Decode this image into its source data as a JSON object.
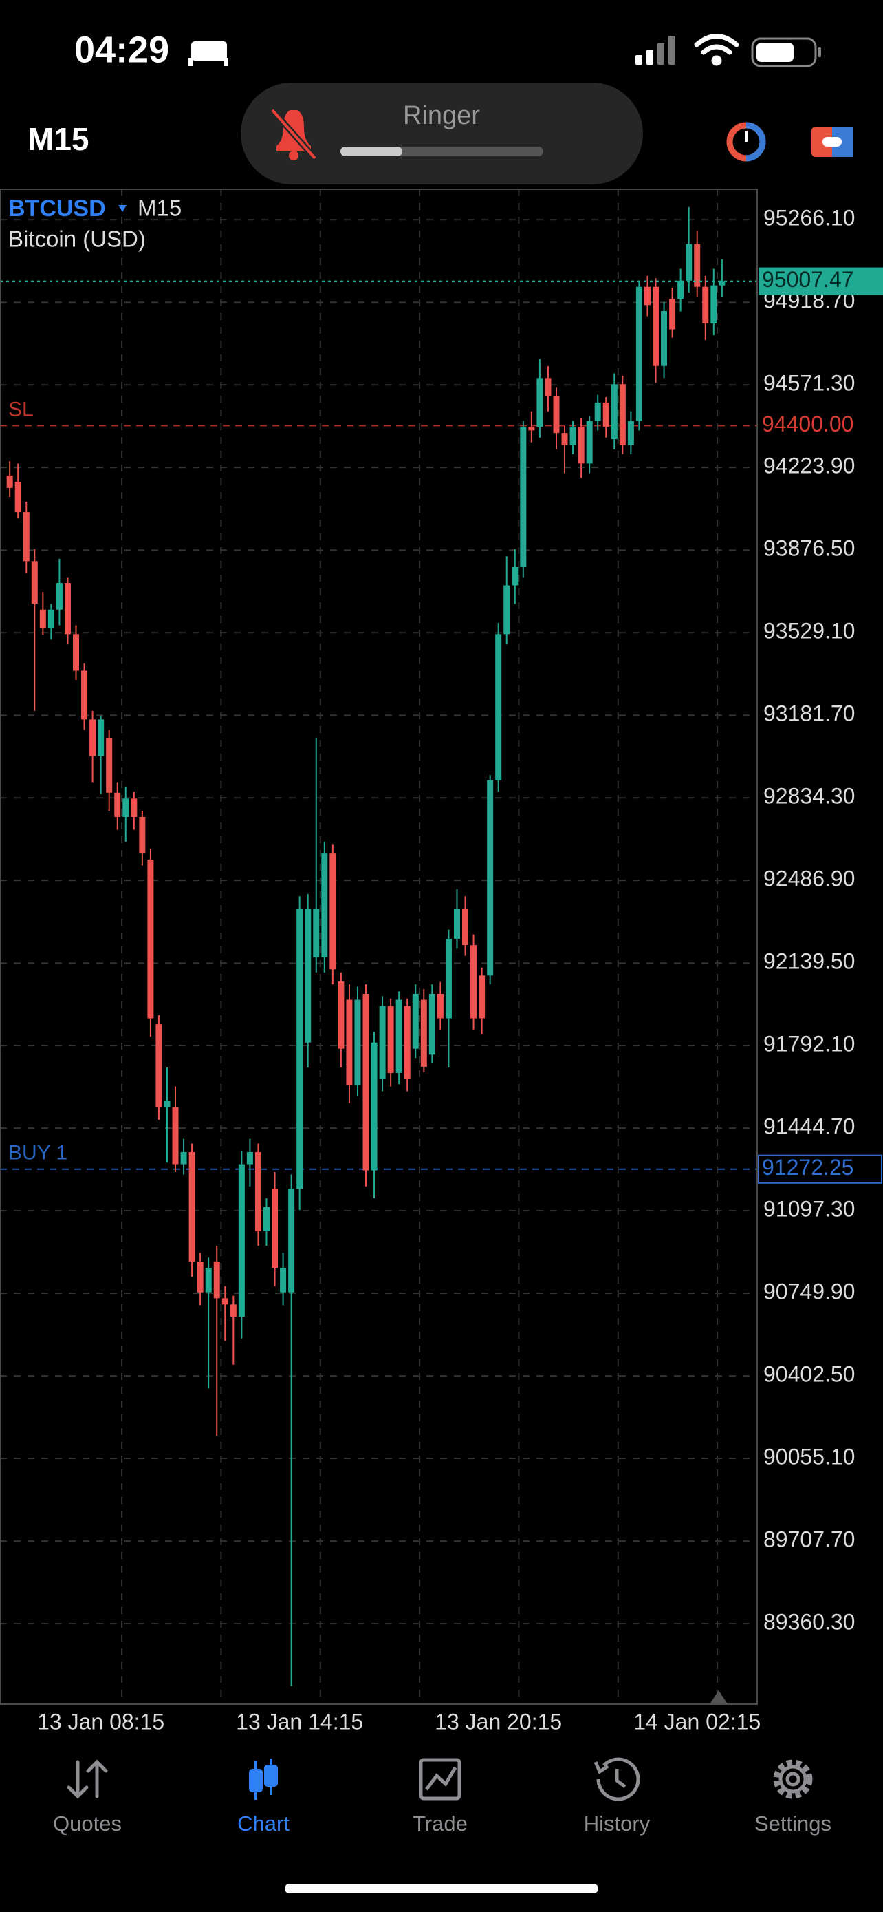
{
  "status_bar": {
    "time": "04:29"
  },
  "ringer": {
    "label": "Ringer"
  },
  "toolbar": {
    "timeframe": "M15"
  },
  "chart_data": {
    "type": "candlestick",
    "symbol": "BTCUSD",
    "timeframe": "M15",
    "description": "Bitcoin (USD)",
    "categories": [
      null,
      null,
      null,
      null,
      null,
      null,
      null,
      null,
      null,
      null,
      null,
      "13 Jan 08:15",
      null,
      null,
      null,
      null,
      null,
      null,
      null,
      null,
      null,
      null,
      null,
      null,
      null,
      null,
      null,
      null,
      null,
      null,
      null,
      null,
      null,
      null,
      null,
      "13 Jan 14:15",
      null,
      null,
      null,
      null,
      null,
      null,
      null,
      null,
      null,
      null,
      null,
      null,
      null,
      null,
      null,
      null,
      null,
      null,
      null,
      null,
      null,
      null,
      null,
      "13 Jan 20:15",
      null,
      null,
      null,
      null,
      null,
      null,
      null,
      null,
      null,
      null,
      null,
      null,
      null,
      null,
      null,
      null,
      null,
      null,
      null,
      null,
      null,
      null,
      null,
      "14 Jan 02:15",
      null,
      null,
      null
    ],
    "open": [
      94190,
      94164,
      94036,
      93830,
      93626,
      93549,
      93626,
      93738,
      93523,
      93369,
      93164,
      93010,
      93087,
      92856,
      92754,
      92831,
      92754,
      92574,
      91882,
      91534,
      91534,
      91293,
      91344,
      90883,
      90754,
      90883,
      90729,
      90703,
      90652,
      91293,
      91344,
      91011,
      91190,
      90754,
      90754,
      91190,
      91805,
      92164,
      92164,
      92600,
      92062,
      91985,
      91626,
      92010,
      91267,
      91651,
      91959,
      91677,
      91959,
      91779,
      91985,
      91754,
      92010,
      91907,
      92241,
      92369,
      92215,
      92087,
      92087,
      92908,
      93523,
      93728,
      93805,
      94395,
      94395,
      94600,
      94523,
      94369,
      94318,
      94395,
      94241,
      94420,
      94497,
      94343,
      94574,
      94318,
      94420,
      94984,
      94984,
      94651,
      94933,
      94933,
      95010,
      95164,
      94984,
      94830,
      94990
    ],
    "high": [
      94250,
      94241,
      94080,
      93880,
      93700,
      93650,
      93840,
      93760,
      93560,
      93400,
      93200,
      93180,
      93120,
      92900,
      92880,
      92860,
      92780,
      92620,
      91920,
      91700,
      91620,
      91400,
      91380,
      90920,
      90900,
      90950,
      90780,
      90740,
      91350,
      91400,
      91380,
      91150,
      91260,
      90920,
      91250,
      92420,
      92430,
      93087,
      92650,
      92640,
      92100,
      92050,
      92040,
      92050,
      91850,
      92000,
      91990,
      92020,
      91990,
      92050,
      92030,
      92050,
      92060,
      92280,
      92450,
      92420,
      92260,
      92120,
      92930,
      93570,
      93850,
      93880,
      94420,
      94460,
      94680,
      94650,
      94560,
      94400,
      94420,
      94430,
      94440,
      94530,
      94520,
      94620,
      94610,
      94460,
      95010,
      95030,
      95020,
      94920,
      94980,
      95060,
      95320,
      95220,
      95030,
      95060,
      95100
    ],
    "low": [
      94100,
      94010,
      93780,
      93200,
      93520,
      93500,
      93560,
      93480,
      93330,
      93120,
      92900,
      92850,
      92780,
      92700,
      92650,
      92700,
      92550,
      91830,
      91480,
      91300,
      91260,
      91250,
      90820,
      90700,
      90350,
      90150,
      90550,
      90450,
      90560,
      91200,
      90950,
      90950,
      90780,
      90700,
      89098,
      91100,
      91700,
      92100,
      92100,
      92050,
      91700,
      91550,
      91580,
      91200,
      91150,
      91600,
      91620,
      91630,
      91600,
      91740,
      91680,
      91720,
      91860,
      91700,
      92200,
      92170,
      91860,
      91840,
      92050,
      92860,
      93480,
      93650,
      93760,
      94330,
      94350,
      94460,
      94300,
      94200,
      94280,
      94180,
      94200,
      94380,
      94350,
      94300,
      94280,
      94280,
      94380,
      94860,
      94580,
      94600,
      94770,
      94880,
      94960,
      94940,
      94760,
      94780,
      94940
    ],
    "close": [
      94138,
      94036,
      93830,
      93651,
      93549,
      93626,
      93738,
      93523,
      93369,
      93164,
      93010,
      93164,
      92856,
      92754,
      92831,
      92754,
      92600,
      91907,
      91534,
      91560,
      91293,
      91344,
      90883,
      90754,
      90857,
      90729,
      90703,
      90652,
      91293,
      91344,
      91011,
      91113,
      90857,
      90857,
      91190,
      92369,
      92369,
      92369,
      92600,
      92113,
      91779,
      91626,
      91985,
      91267,
      91805,
      91959,
      91677,
      91985,
      91651,
      92010,
      91703,
      92010,
      91907,
      92241,
      92369,
      92215,
      91907,
      91907,
      92908,
      93523,
      93728,
      93805,
      94395,
      94380,
      94600,
      94523,
      94369,
      94318,
      94395,
      94241,
      94420,
      94497,
      94395,
      94574,
      94318,
      94420,
      94984,
      94907,
      94651,
      94882,
      94805,
      95010,
      95164,
      94984,
      94830,
      94990,
      95007.47
    ],
    "up_color": "#22ab94",
    "down_color": "#ef5350",
    "ylim": [
      89021.9,
      95394.3
    ],
    "yticks": [
      {
        "value": 95266.1,
        "label": "95266.10"
      },
      {
        "value": 94918.7,
        "label": "94918.70"
      },
      {
        "value": 94571.3,
        "label": "94571.30"
      },
      {
        "value": 94223.9,
        "label": "94223.90"
      },
      {
        "value": 93876.5,
        "label": "93876.50"
      },
      {
        "value": 93529.1,
        "label": "93529.10"
      },
      {
        "value": 93181.7,
        "label": "93181.70"
      },
      {
        "value": 92834.3,
        "label": "92834.30"
      },
      {
        "value": 92486.9,
        "label": "92486.90"
      },
      {
        "value": 92139.5,
        "label": "92139.50"
      },
      {
        "value": 91792.1,
        "label": "91792.10"
      },
      {
        "value": 91444.7,
        "label": "91444.70"
      },
      {
        "value": 91097.3,
        "label": "91097.30"
      },
      {
        "value": 90749.9,
        "label": "90749.90"
      },
      {
        "value": 90402.5,
        "label": "90402.50"
      },
      {
        "value": 90055.1,
        "label": "90055.10"
      },
      {
        "value": 89707.7,
        "label": "89707.70"
      },
      {
        "value": 89360.3,
        "label": "89360.30"
      }
    ],
    "grid": true,
    "current_price": 95007.47,
    "current_price_color": "#22ab94",
    "levels": [
      {
        "name": "SL",
        "value": 94400,
        "value_label": "94400.00",
        "color": "#d93a31"
      },
      {
        "name": "BUY 1",
        "value": 91272.25,
        "color": "#2f6fd6"
      }
    ]
  },
  "tab_bar": {
    "tabs": [
      "Quotes",
      "Chart",
      "Trade",
      "History",
      "Settings"
    ],
    "active": 1
  }
}
